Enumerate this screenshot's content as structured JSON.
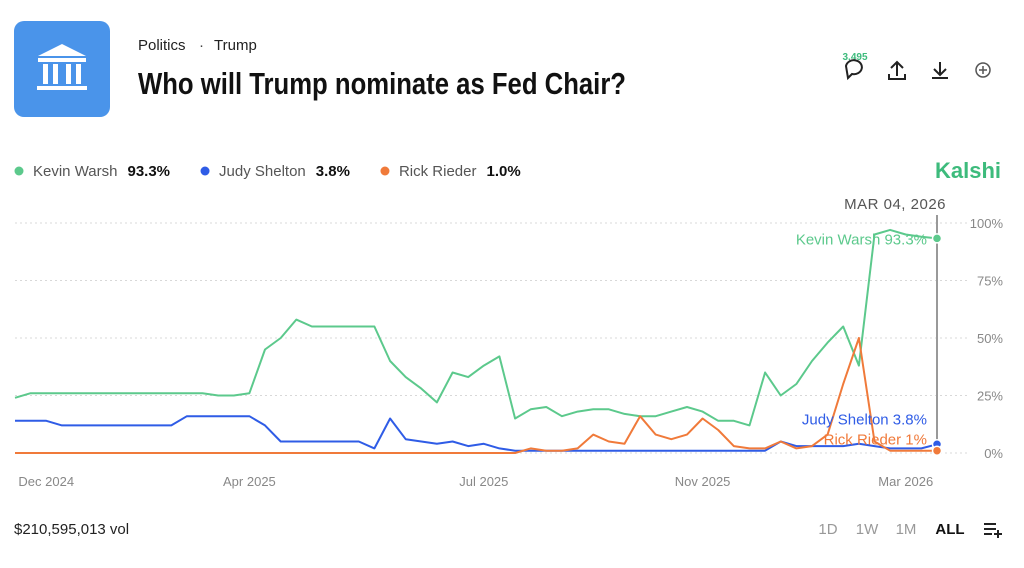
{
  "header": {
    "breadcrumb": [
      "Politics",
      "·",
      "Trump"
    ],
    "title": "Who will Trump nominate as Fed Chair?",
    "comments": "3,495"
  },
  "brand": "Kalshi",
  "footer": {
    "volume": "$210,595,013 vol",
    "ranges": [
      "1D",
      "1W",
      "1M",
      "ALL"
    ]
  },
  "chart_data": {
    "type": "line",
    "hover_date": "MAR 04, 2026",
    "categories": [
      null,
      null,
      "Dec 2024",
      null,
      null,
      null,
      null,
      null,
      null,
      null,
      null,
      null,
      null,
      null,
      null,
      "Apr 2025",
      null,
      null,
      null,
      null,
      null,
      null,
      null,
      null,
      null,
      null,
      null,
      null,
      null,
      null,
      "Jul 2025",
      null,
      null,
      null,
      null,
      null,
      null,
      null,
      null,
      null,
      null,
      null,
      null,
      null,
      "Nov 2025",
      null,
      null,
      null,
      null,
      null,
      null,
      null,
      null,
      null,
      null,
      null,
      null,
      "Mar 2026",
      null,
      null
    ],
    "series": [
      {
        "name": "Kevin Warsh",
        "legend_value": "93.3%",
        "end_label": "Kevin Warsh 93.3%",
        "color": "#5cc98c",
        "values": [
          24,
          26,
          26,
          26,
          26,
          26,
          26,
          26,
          26,
          26,
          26,
          26,
          26,
          25,
          25,
          26,
          45,
          50,
          58,
          55,
          55,
          55,
          55,
          55,
          40,
          33,
          28,
          22,
          35,
          33,
          38,
          42,
          15,
          19,
          20,
          16,
          18,
          19,
          19,
          17,
          16,
          16,
          18,
          20,
          18,
          14,
          14,
          12,
          35,
          25,
          30,
          40,
          48,
          55,
          38,
          95,
          97,
          95,
          94,
          93.3
        ]
      },
      {
        "name": "Judy Shelton",
        "legend_value": "3.8%",
        "end_label": "Judy Shelton 3.8%",
        "color": "#2f5ce6",
        "values": [
          14,
          14,
          14,
          12,
          12,
          12,
          12,
          12,
          12,
          12,
          12,
          16,
          16,
          16,
          16,
          16,
          12,
          5,
          5,
          5,
          5,
          5,
          5,
          2,
          15,
          6,
          5,
          4,
          5,
          3,
          4,
          2,
          1,
          1,
          1,
          1,
          1,
          1,
          1,
          1,
          1,
          1,
          1,
          1,
          1,
          1,
          1,
          1,
          1,
          5,
          3,
          3,
          3,
          3,
          4,
          3,
          2,
          2,
          2,
          3.8
        ]
      },
      {
        "name": "Rick Rieder",
        "legend_value": "1.0%",
        "end_label": "Rick Rieder 1%",
        "color": "#f07a3a",
        "values": [
          0,
          0,
          0,
          0,
          0,
          0,
          0,
          0,
          0,
          0,
          0,
          0,
          0,
          0,
          0,
          0,
          0,
          0,
          0,
          0,
          0,
          0,
          0,
          0,
          0,
          0,
          0,
          0,
          0,
          0,
          0,
          0,
          0,
          2,
          1,
          1,
          2,
          8,
          5,
          4,
          16,
          8,
          6,
          8,
          15,
          10,
          3,
          2,
          2,
          5,
          2,
          3,
          8,
          30,
          50,
          5,
          1,
          1,
          1,
          1.0
        ]
      }
    ],
    "ylim": [
      0,
      100
    ],
    "yticks": [
      {
        "value": 0,
        "label": "0%"
      },
      {
        "value": 25,
        "label": "25%"
      },
      {
        "value": 50,
        "label": "50%"
      },
      {
        "value": 75,
        "label": "75%"
      },
      {
        "value": 100,
        "label": "100%"
      }
    ],
    "grid": true
  }
}
